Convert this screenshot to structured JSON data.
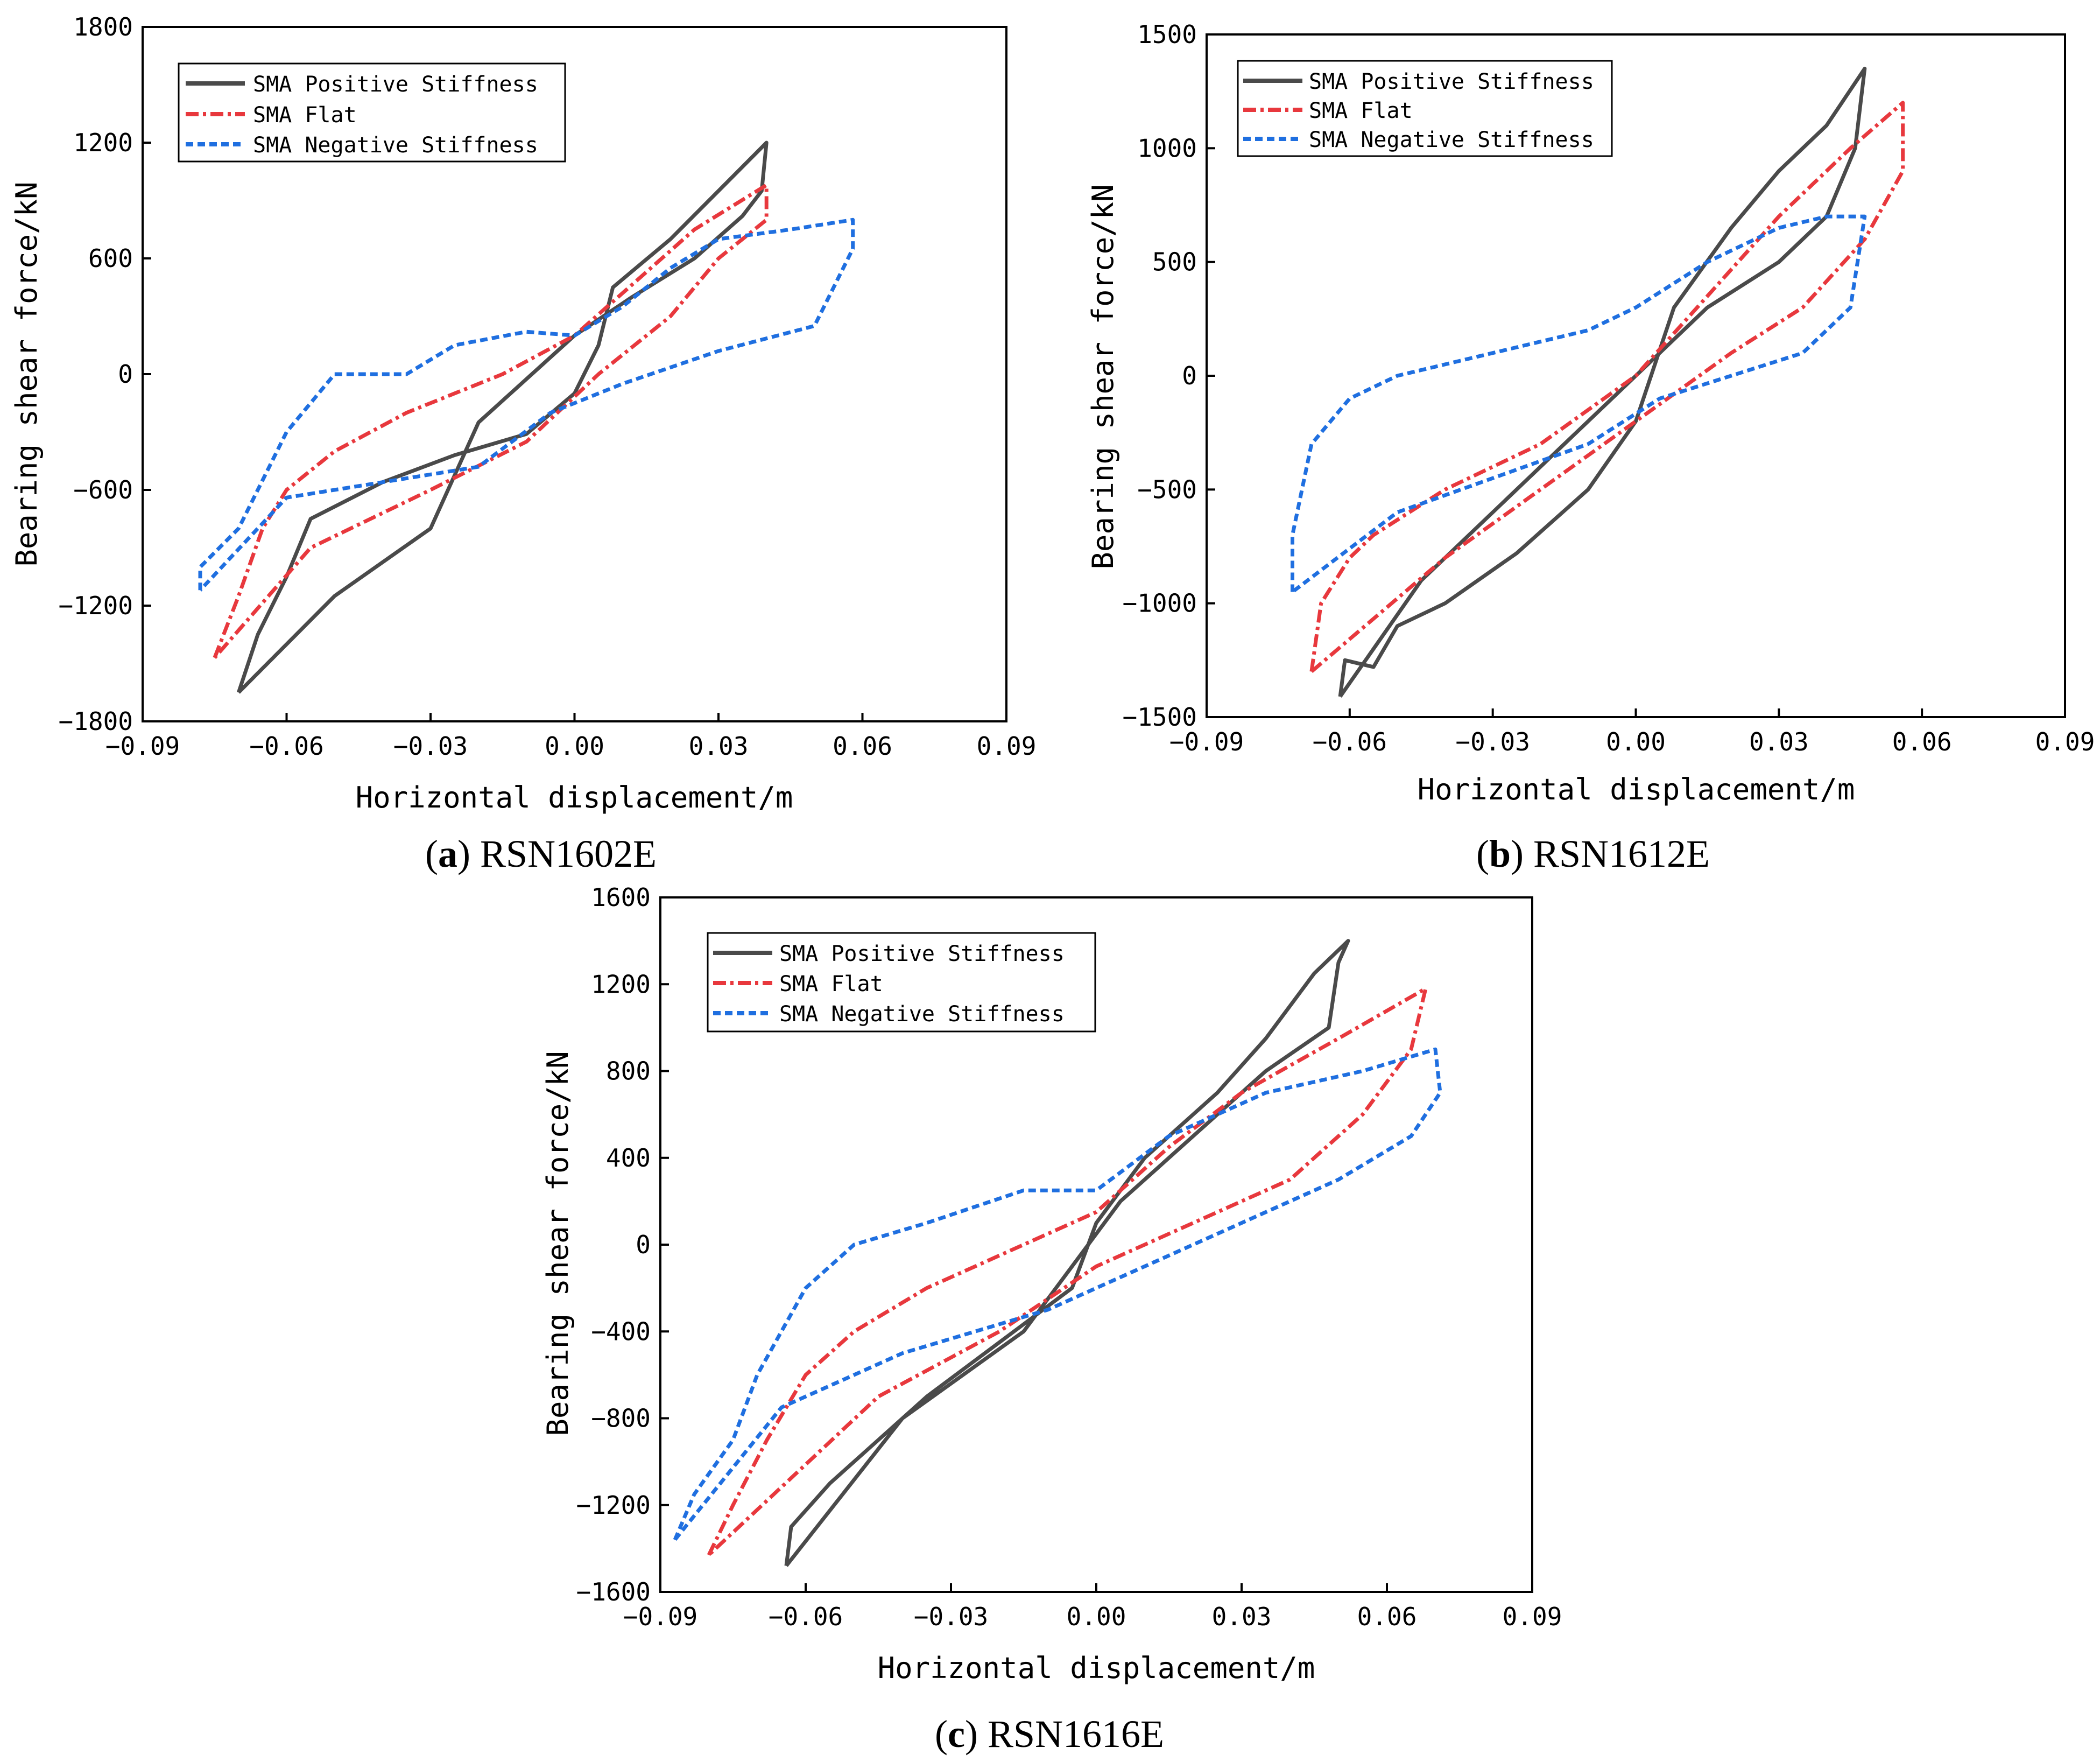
{
  "figure": {
    "axis_xlabel": "Horizontal displacement/m",
    "axis_ylabel": "Bearing shear force/kN",
    "legend": {
      "positive": "SMA Positive Stiffness",
      "flat": "SMA Flat",
      "negative": "SMA Negative Stiffness"
    },
    "colors": {
      "positive": "#4a4a4a",
      "flat": "#e8383d",
      "negative": "#1f6fe0",
      "axis": "#000000"
    }
  },
  "chart_data": [
    {
      "type": "line",
      "panel_letter": "a",
      "caption": " RSN1602E",
      "xlabel": "Horizontal displacement/m",
      "ylabel": "Bearing shear force/kN",
      "xlim": [
        -0.09,
        0.09
      ],
      "ylim": [
        -1800,
        1800
      ],
      "xticks": [
        "−0.09",
        "−0.06",
        "−0.03",
        "0.00",
        "0.03",
        "0.06",
        "0.09"
      ],
      "yticks": [
        "−1800",
        "−1200",
        "−600",
        "0",
        "600",
        "1200",
        "1800"
      ],
      "series": [
        {
          "name": "SMA Positive Stiffness",
          "points": [
            [
              -0.07,
              -1650
            ],
            [
              -0.066,
              -1350
            ],
            [
              -0.06,
              -1050
            ],
            [
              -0.055,
              -750
            ],
            [
              -0.04,
              -560
            ],
            [
              -0.025,
              -420
            ],
            [
              -0.01,
              -310
            ],
            [
              0.0,
              -100
            ],
            [
              0.005,
              150
            ],
            [
              0.008,
              450
            ],
            [
              0.02,
              700
            ],
            [
              0.03,
              950
            ],
            [
              0.04,
              1200
            ],
            [
              0.039,
              950
            ],
            [
              0.035,
              820
            ],
            [
              0.025,
              600
            ],
            [
              0.012,
              400
            ],
            [
              0.0,
              200
            ],
            [
              -0.02,
              -250
            ],
            [
              -0.03,
              -800
            ],
            [
              -0.05,
              -1150
            ],
            [
              -0.07,
              -1650
            ]
          ]
        },
        {
          "name": "SMA Flat",
          "points": [
            [
              -0.075,
              -1470
            ],
            [
              -0.07,
              -1150
            ],
            [
              -0.065,
              -800
            ],
            [
              -0.06,
              -600
            ],
            [
              -0.05,
              -400
            ],
            [
              -0.035,
              -200
            ],
            [
              -0.015,
              0
            ],
            [
              0.0,
              200
            ],
            [
              0.01,
              420
            ],
            [
              0.025,
              750
            ],
            [
              0.04,
              980
            ],
            [
              0.04,
              800
            ],
            [
              0.03,
              600
            ],
            [
              0.02,
              300
            ],
            [
              0.005,
              0
            ],
            [
              -0.01,
              -350
            ],
            [
              -0.03,
              -600
            ],
            [
              -0.055,
              -900
            ],
            [
              -0.075,
              -1470
            ]
          ]
        },
        {
          "name": "SMA Negative Stiffness",
          "points": [
            [
              -0.078,
              -1120
            ],
            [
              -0.078,
              -1000
            ],
            [
              -0.07,
              -800
            ],
            [
              -0.06,
              -300
            ],
            [
              -0.05,
              0
            ],
            [
              -0.035,
              0
            ],
            [
              -0.025,
              150
            ],
            [
              -0.01,
              220
            ],
            [
              0.0,
              200
            ],
            [
              0.01,
              350
            ],
            [
              0.02,
              550
            ],
            [
              0.03,
              700
            ],
            [
              0.045,
              750
            ],
            [
              0.058,
              800
            ],
            [
              0.058,
              650
            ],
            [
              0.05,
              250
            ],
            [
              0.03,
              120
            ],
            [
              0.01,
              -50
            ],
            [
              -0.005,
              -200
            ],
            [
              -0.02,
              -480
            ],
            [
              -0.04,
              -560
            ],
            [
              -0.06,
              -640
            ],
            [
              -0.078,
              -1120
            ]
          ]
        }
      ]
    },
    {
      "type": "line",
      "panel_letter": "b",
      "caption": " RSN1612E",
      "xlabel": "Horizontal displacement/m",
      "ylabel": "Bearing shear force/kN",
      "xlim": [
        -0.09,
        0.09
      ],
      "ylim": [
        -1500,
        1500
      ],
      "xticks": [
        "−0.09",
        "−0.06",
        "−0.03",
        "0.00",
        "0.03",
        "0.06",
        "0.09"
      ],
      "yticks": [
        "−1500",
        "−1000",
        "−500",
        "0",
        "500",
        "1000",
        "1500"
      ],
      "series": [
        {
          "name": "SMA Positive Stiffness",
          "points": [
            [
              -0.062,
              -1410
            ],
            [
              -0.061,
              -1250
            ],
            [
              -0.055,
              -1280
            ],
            [
              -0.05,
              -1100
            ],
            [
              -0.04,
              -1000
            ],
            [
              -0.025,
              -780
            ],
            [
              -0.01,
              -500
            ],
            [
              0.0,
              -200
            ],
            [
              0.008,
              300
            ],
            [
              0.02,
              650
            ],
            [
              0.03,
              900
            ],
            [
              0.04,
              1100
            ],
            [
              0.048,
              1350
            ],
            [
              0.046,
              1000
            ],
            [
              0.04,
              700
            ],
            [
              0.03,
              500
            ],
            [
              0.015,
              300
            ],
            [
              0.0,
              0
            ],
            [
              -0.015,
              -300
            ],
            [
              -0.03,
              -600
            ],
            [
              -0.045,
              -900
            ],
            [
              -0.062,
              -1410
            ]
          ]
        },
        {
          "name": "SMA Flat",
          "points": [
            [
              -0.068,
              -1300
            ],
            [
              -0.066,
              -1000
            ],
            [
              -0.06,
              -800
            ],
            [
              -0.055,
              -700
            ],
            [
              -0.04,
              -500
            ],
            [
              -0.02,
              -300
            ],
            [
              0.0,
              0
            ],
            [
              0.015,
              350
            ],
            [
              0.03,
              700
            ],
            [
              0.045,
              1000
            ],
            [
              0.056,
              1200
            ],
            [
              0.056,
              900
            ],
            [
              0.048,
              600
            ],
            [
              0.035,
              300
            ],
            [
              0.02,
              100
            ],
            [
              0.0,
              -200
            ],
            [
              -0.02,
              -500
            ],
            [
              -0.04,
              -800
            ],
            [
              -0.068,
              -1300
            ]
          ]
        },
        {
          "name": "SMA Negative Stiffness",
          "points": [
            [
              -0.072,
              -950
            ],
            [
              -0.072,
              -700
            ],
            [
              -0.068,
              -300
            ],
            [
              -0.06,
              -100
            ],
            [
              -0.05,
              0
            ],
            [
              -0.03,
              100
            ],
            [
              -0.01,
              200
            ],
            [
              0.0,
              300
            ],
            [
              0.015,
              500
            ],
            [
              0.03,
              650
            ],
            [
              0.04,
              700
            ],
            [
              0.048,
              700
            ],
            [
              0.045,
              300
            ],
            [
              0.035,
              100
            ],
            [
              0.02,
              0
            ],
            [
              0.005,
              -100
            ],
            [
              -0.01,
              -300
            ],
            [
              -0.03,
              -450
            ],
            [
              -0.05,
              -600
            ],
            [
              -0.072,
              -950
            ]
          ]
        }
      ]
    },
    {
      "type": "line",
      "panel_letter": "c",
      "caption": " RSN1616E",
      "xlabel": "Horizontal displacement/m",
      "ylabel": "Bearing shear force/kN",
      "xlim": [
        -0.09,
        0.09
      ],
      "ylim": [
        -1600,
        1600
      ],
      "xticks": [
        "−0.09",
        "−0.06",
        "−0.03",
        "0.00",
        "0.03",
        "0.06",
        "0.09"
      ],
      "yticks": [
        "−1600",
        "−1200",
        "−800",
        "−400",
        "0",
        "400",
        "800",
        "1200",
        "1600"
      ],
      "series": [
        {
          "name": "SMA Positive Stiffness",
          "points": [
            [
              -0.064,
              -1480
            ],
            [
              -0.063,
              -1300
            ],
            [
              -0.055,
              -1100
            ],
            [
              -0.045,
              -900
            ],
            [
              -0.035,
              -700
            ],
            [
              -0.02,
              -450
            ],
            [
              -0.005,
              -200
            ],
            [
              0.0,
              100
            ],
            [
              0.01,
              400
            ],
            [
              0.025,
              700
            ],
            [
              0.035,
              950
            ],
            [
              0.045,
              1250
            ],
            [
              0.052,
              1400
            ],
            [
              0.05,
              1300
            ],
            [
              0.048,
              1000
            ],
            [
              0.035,
              800
            ],
            [
              0.02,
              500
            ],
            [
              0.005,
              200
            ],
            [
              -0.015,
              -400
            ],
            [
              -0.04,
              -800
            ],
            [
              -0.064,
              -1480
            ]
          ]
        },
        {
          "name": "SMA Flat",
          "points": [
            [
              -0.08,
              -1430
            ],
            [
              -0.075,
              -1200
            ],
            [
              -0.068,
              -900
            ],
            [
              -0.06,
              -600
            ],
            [
              -0.05,
              -400
            ],
            [
              -0.035,
              -200
            ],
            [
              -0.015,
              0
            ],
            [
              0.0,
              150
            ],
            [
              0.015,
              450
            ],
            [
              0.03,
              700
            ],
            [
              0.05,
              950
            ],
            [
              0.068,
              1180
            ],
            [
              0.065,
              900
            ],
            [
              0.055,
              600
            ],
            [
              0.04,
              300
            ],
            [
              0.02,
              100
            ],
            [
              0.0,
              -100
            ],
            [
              -0.02,
              -400
            ],
            [
              -0.045,
              -700
            ],
            [
              -0.08,
              -1430
            ]
          ]
        },
        {
          "name": "SMA Negative Stiffness",
          "points": [
            [
              -0.087,
              -1360
            ],
            [
              -0.083,
              -1150
            ],
            [
              -0.075,
              -900
            ],
            [
              -0.07,
              -600
            ],
            [
              -0.06,
              -200
            ],
            [
              -0.05,
              0
            ],
            [
              -0.035,
              100
            ],
            [
              -0.015,
              250
            ],
            [
              0.0,
              250
            ],
            [
              0.015,
              500
            ],
            [
              0.035,
              700
            ],
            [
              0.055,
              800
            ],
            [
              0.07,
              900
            ],
            [
              0.071,
              700
            ],
            [
              0.065,
              500
            ],
            [
              0.05,
              300
            ],
            [
              0.03,
              100
            ],
            [
              0.01,
              -100
            ],
            [
              -0.01,
              -300
            ],
            [
              -0.04,
              -500
            ],
            [
              -0.065,
              -750
            ],
            [
              -0.087,
              -1360
            ]
          ]
        }
      ]
    }
  ]
}
